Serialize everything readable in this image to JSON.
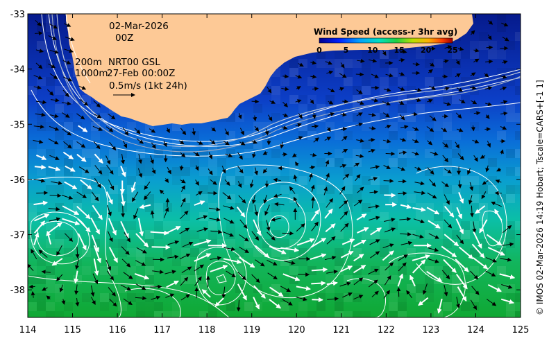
{
  "map": {
    "lon_range": [
      114,
      125
    ],
    "lat_range": [
      -38.5,
      -33
    ],
    "x_ticks": [
      "114",
      "115",
      "116",
      "117",
      "118",
      "119",
      "120",
      "121",
      "122",
      "123",
      "124",
      "125"
    ],
    "y_ticks": [
      "-33",
      "-34",
      "-35",
      "-36",
      "-37",
      "-38"
    ],
    "land_color": "#fdc996",
    "ocean_near_color": "#0a1f8f",
    "ocean_far_color": "#12a83a"
  },
  "annotations": {
    "date": "02-Mar-2026",
    "time": "00Z",
    "depth_200": "200m",
    "depth_1000": "1000m",
    "source": "NRT00 GSL",
    "source_time": "27-Feb 00:00Z",
    "scale_label": "0.5m/s (1kt 24h)"
  },
  "colorbar": {
    "title": "Wind Speed (access-r 3hr avg)",
    "ticks": [
      "0",
      "5",
      "10",
      "15",
      "20",
      "25"
    ],
    "range": [
      0,
      25
    ]
  },
  "credit": "© IMOS 02-Mar-2026 14:19 Hobart; Tscale=CARS+[-1 1]"
}
